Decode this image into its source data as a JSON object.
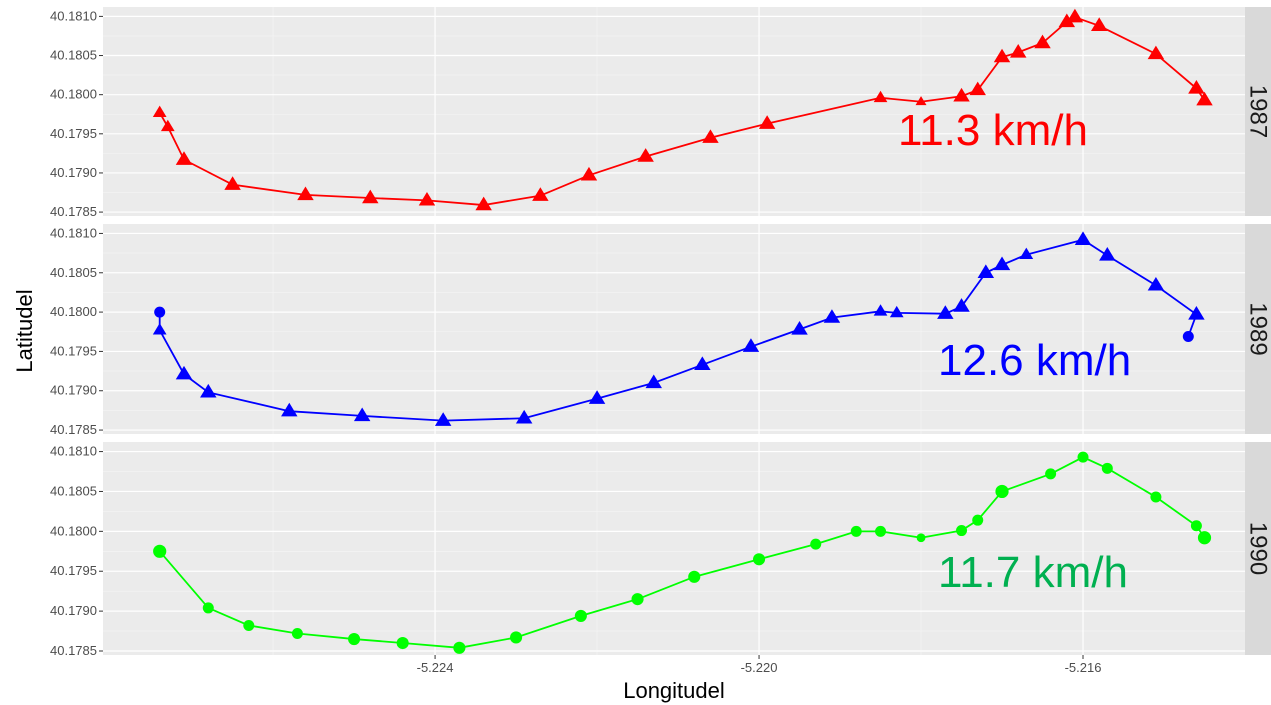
{
  "chart_data": {
    "type": "line",
    "xlabel": "Longitudel",
    "ylabel": "Latitudel",
    "xlim": [
      -5.2281,
      -5.214
    ],
    "x_ticks": [
      -5.224,
      -5.22,
      -5.216
    ],
    "x_tick_labels": [
      "-5.224",
      "-5.220",
      "-5.216"
    ],
    "ylim": [
      40.17845,
      40.18112
    ],
    "y_ticks": [
      40.1785,
      40.179,
      40.1795,
      40.18,
      40.1805,
      40.181
    ],
    "y_tick_labels": [
      "40.1785",
      "40.1790",
      "40.1795",
      "40.1800",
      "40.1805",
      "40.1810"
    ],
    "grid": true,
    "facets": [
      {
        "strip_label": "1987",
        "annotation": "11.3 km/h",
        "color": "#ff0000",
        "annotation_color": "#ff0000",
        "series": [
          {
            "x": [
              -5.2274,
              -5.2273,
              -5.2271,
              -5.2265,
              -5.2256,
              -5.2248,
              -5.2241,
              -5.2234,
              -5.2227,
              -5.2221,
              -5.2214,
              -5.2206,
              -5.2199,
              -5.2185,
              -5.218,
              -5.2175,
              -5.2173,
              -5.217,
              -5.2168,
              -5.2165,
              -5.2162,
              -5.2161,
              -5.2158,
              -5.2151,
              -5.2146,
              -5.2145
            ],
            "y": [
              40.17977,
              40.17959,
              40.17917,
              40.17885,
              40.17872,
              40.17868,
              40.17865,
              40.17859,
              40.17871,
              40.17897,
              40.17921,
              40.17945,
              40.17963,
              40.17996,
              40.17991,
              40.17998,
              40.18006,
              40.18048,
              40.18054,
              40.18066,
              40.18093,
              40.18099,
              40.18088,
              40.18052,
              40.18008,
              40.17993
            ],
            "marker": [
              "triangle",
              "triangle",
              "triangle",
              "triangle",
              "triangle",
              "triangle",
              "triangle",
              "triangle",
              "triangle",
              "triangle",
              "triangle",
              "triangle",
              "triangle",
              "triangle",
              "triangle",
              "triangle",
              "triangle",
              "triangle",
              "triangle",
              "triangle",
              "triangle",
              "triangle",
              "triangle",
              "triangle",
              "triangle",
              "triangle"
            ],
            "size": [
              1,
              1,
              1.2,
              1.2,
              1.2,
              1.2,
              1.2,
              1.2,
              1.2,
              1.2,
              1.2,
              1.2,
              1.2,
              1,
              0.8,
              1.2,
              1.2,
              1.2,
              1.2,
              1.2,
              1.2,
              1.2,
              1.2,
              1.2,
              1.2,
              1.2
            ]
          }
        ]
      },
      {
        "strip_label": "1989",
        "annotation": "12.6 km/h",
        "color": "#0000ff",
        "annotation_color": "#0000ff",
        "series": [
          {
            "x": [
              -5.2274,
              -5.2274,
              -5.2271,
              -5.2268,
              -5.2258,
              -5.2249,
              -5.2239,
              -5.2229,
              -5.222,
              -5.2213,
              -5.2207,
              -5.2201,
              -5.2195,
              -5.2191,
              -5.2185,
              -5.2183,
              -5.2177,
              -5.2175,
              -5.2172,
              -5.217,
              -5.2167,
              -5.216,
              -5.2157,
              -5.2151,
              -5.2146,
              -5.2147
            ],
            "y": [
              40.18,
              40.17977,
              40.17921,
              40.17898,
              40.17874,
              40.17868,
              40.17862,
              40.17865,
              40.1789,
              40.1791,
              40.17933,
              40.17956,
              40.17978,
              40.17993,
              40.18001,
              40.17999,
              40.17998,
              40.18007,
              40.1805,
              40.1806,
              40.18073,
              40.18092,
              40.18072,
              40.18034,
              40.17997,
              40.17969
            ],
            "marker": [
              "circle",
              "triangle",
              "triangle",
              "triangle",
              "triangle",
              "triangle",
              "triangle",
              "triangle",
              "triangle",
              "triangle",
              "triangle",
              "triangle",
              "triangle",
              "triangle",
              "triangle",
              "triangle",
              "triangle",
              "triangle",
              "triangle",
              "triangle",
              "triangle",
              "triangle",
              "triangle",
              "triangle",
              "triangle",
              "circle"
            ],
            "size": [
              1,
              1,
              1.2,
              1.2,
              1.2,
              1.2,
              1.2,
              1.2,
              1.2,
              1.2,
              1.2,
              1.2,
              1.2,
              1.2,
              1,
              1,
              1.2,
              1.2,
              1.2,
              1.2,
              1,
              1.2,
              1.2,
              1.2,
              1.2,
              1
            ]
          }
        ]
      },
      {
        "strip_label": "1990",
        "annotation": "11.7 km/h",
        "color": "#00ff00",
        "annotation_color": "#00b050",
        "series": [
          {
            "x": [
              -5.2274,
              -5.2268,
              -5.2263,
              -5.2257,
              -5.225,
              -5.2244,
              -5.2237,
              -5.223,
              -5.2222,
              -5.2215,
              -5.2208,
              -5.22,
              -5.2193,
              -5.2188,
              -5.2185,
              -5.218,
              -5.2175,
              -5.2173,
              -5.217,
              -5.2164,
              -5.216,
              -5.2157,
              -5.2151,
              -5.2146,
              -5.2145
            ],
            "y": [
              40.17975,
              40.17904,
              40.17882,
              40.17872,
              40.17865,
              40.1786,
              40.17854,
              40.17867,
              40.17894,
              40.17915,
              40.17943,
              40.17965,
              40.17984,
              40.18,
              40.18,
              40.17992,
              40.18001,
              40.18014,
              40.1805,
              40.18072,
              40.18093,
              40.18079,
              40.18043,
              40.18007,
              40.17992
            ],
            "marker": [
              "circle",
              "circle",
              "circle",
              "circle",
              "circle",
              "circle",
              "circle",
              "circle",
              "circle",
              "circle",
              "circle",
              "circle",
              "circle",
              "circle",
              "circle",
              "circle",
              "circle",
              "circle",
              "circle",
              "circle",
              "circle",
              "circle",
              "circle",
              "circle",
              "circle"
            ],
            "size": [
              1.2,
              1,
              1,
              1,
              1.1,
              1.1,
              1.1,
              1.1,
              1.1,
              1.1,
              1.1,
              1.1,
              1,
              1,
              1,
              0.8,
              1,
              1,
              1.2,
              1,
              1,
              1,
              1,
              1,
              1.2
            ]
          }
        ]
      }
    ]
  }
}
